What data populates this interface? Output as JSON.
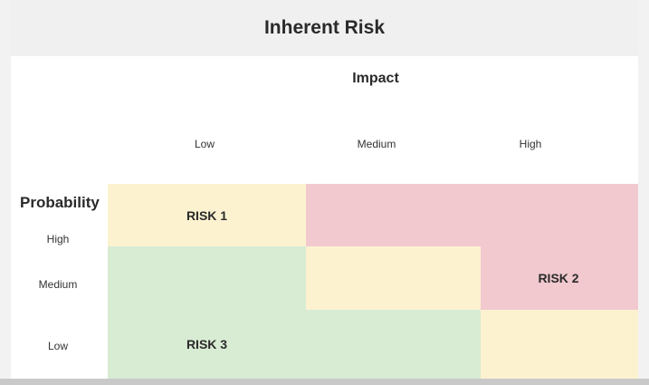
{
  "title": "Inherent Risk",
  "impact_label": "Impact",
  "probability_label": "Probability",
  "impact_levels": [
    "Low",
    "Medium",
    "High"
  ],
  "probability_levels": [
    "High",
    "Medium",
    "Low"
  ],
  "colors": {
    "yellow": "#fcf2d0",
    "red": "#f1c9cf",
    "green": "#d8ebd3"
  },
  "cells": {
    "high_low": "RISK 1",
    "high_medium": "",
    "high_high": "",
    "medium_low": "",
    "medium_medium": "",
    "medium_high": "RISK 2",
    "low_low": "RISK 3",
    "low_medium": "",
    "low_high": ""
  }
}
